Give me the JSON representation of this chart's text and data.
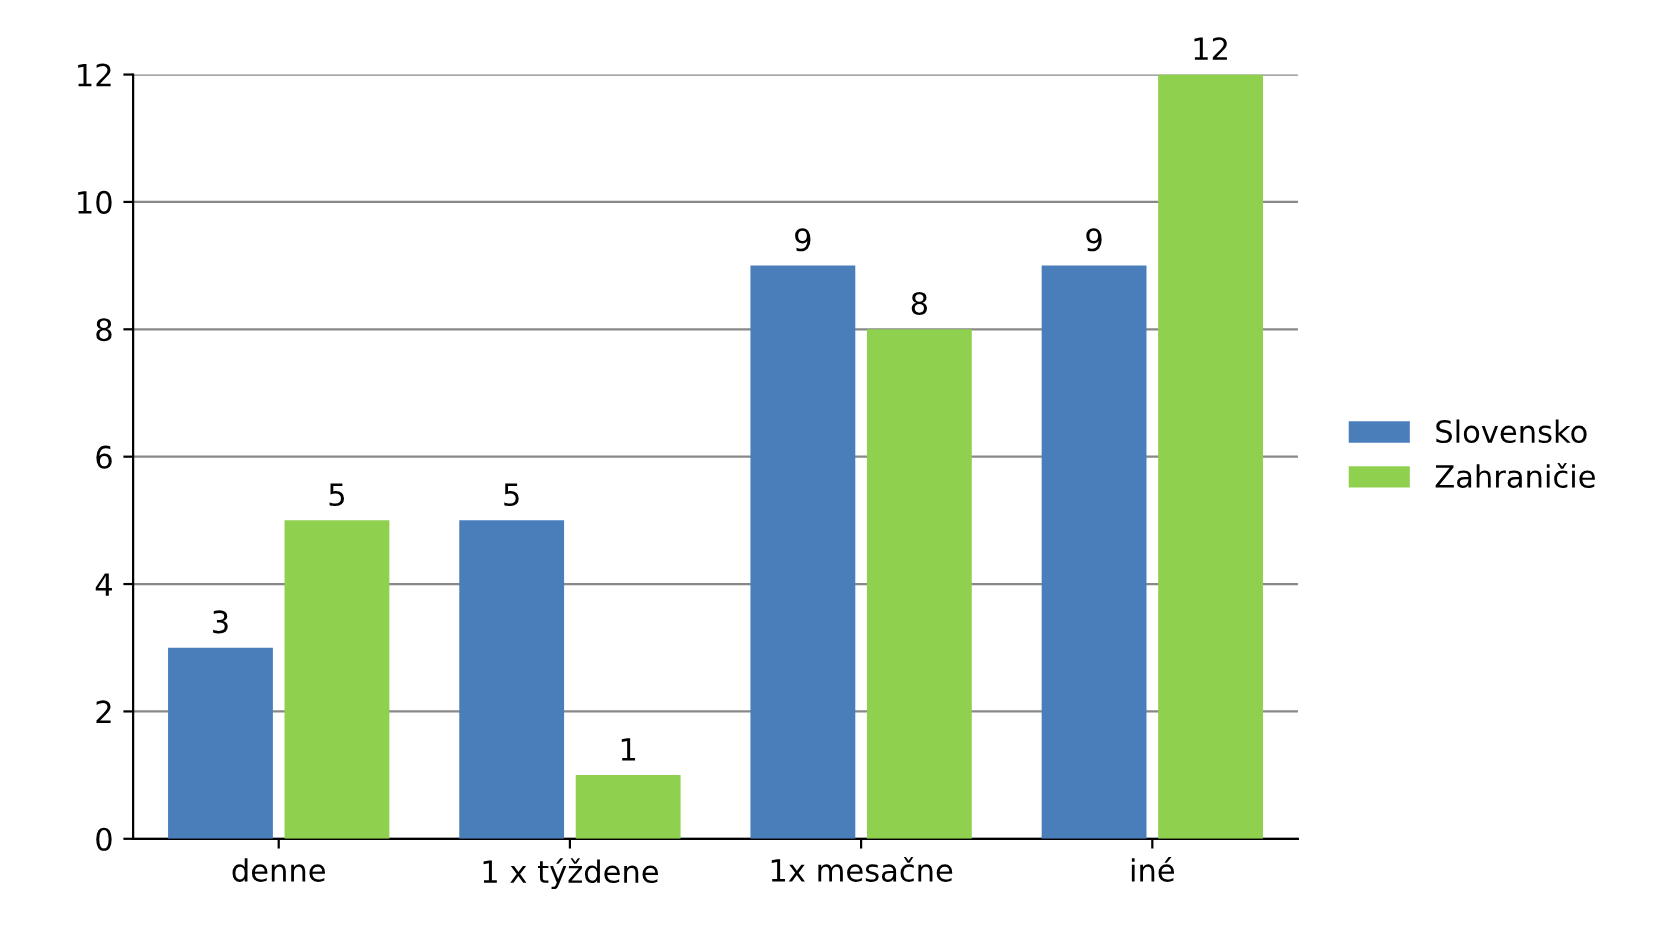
{
  "chart_data": {
    "type": "bar",
    "categories": [
      "denne",
      "1 x týždene",
      "1x mesačne",
      "iné"
    ],
    "series": [
      {
        "name": "Slovensko",
        "color": "#4a7ebb",
        "values": [
          3,
          5,
          9,
          9
        ]
      },
      {
        "name": "Zahraničie",
        "color": "#8fd14f",
        "values": [
          5,
          1,
          8,
          12
        ]
      }
    ],
    "ylim": [
      0,
      12
    ],
    "yticks": [
      0,
      2,
      4,
      6,
      8,
      10,
      12
    ],
    "grid": "y",
    "legend": "right",
    "data_labels": true
  }
}
